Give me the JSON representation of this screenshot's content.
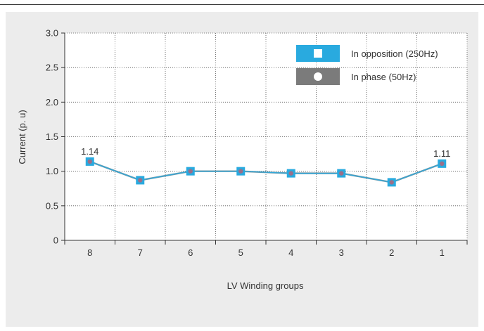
{
  "chart_data": {
    "type": "line",
    "categories": [
      "8",
      "7",
      "6",
      "5",
      "4",
      "3",
      "2",
      "1"
    ],
    "series": [
      {
        "name": "In opposition (250Hz)",
        "values": [
          1.14,
          0.87,
          1.0,
          1.0,
          0.97,
          0.97,
          0.84,
          1.11
        ],
        "color": "#29aadf",
        "marker": "square"
      },
      {
        "name": "In phase (50Hz)",
        "values": [
          1.14,
          0.87,
          1.0,
          1.0,
          0.97,
          0.97,
          0.84,
          1.11
        ],
        "color": "#7b7b7b",
        "marker": "circle"
      }
    ],
    "data_labels": [
      {
        "category": "8",
        "text": "1.14"
      },
      {
        "category": "1",
        "text": "1.11"
      }
    ],
    "xlabel": "LV Winding groups",
    "ylabel": "Current (p. u)",
    "ylim": [
      0,
      3.0
    ],
    "yticks": [
      0,
      0.5,
      1.0,
      1.5,
      2.0,
      2.5,
      3.0
    ],
    "ytick_labels": [
      "0",
      "0.5",
      "1.0",
      "1.5",
      "2.0",
      "2.5",
      "3.0"
    ],
    "grid": true,
    "legend_position": "top-right"
  }
}
